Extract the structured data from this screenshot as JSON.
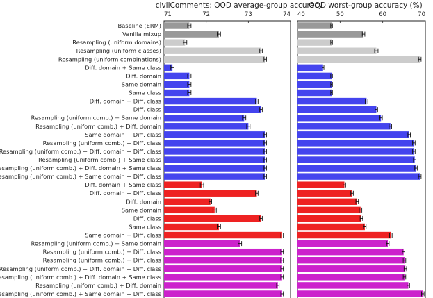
{
  "chart_data": {
    "type": "bar",
    "orientation": "horizontal",
    "categories": [
      "Baseline (ERM)",
      "Vanilla mixup",
      "Resampling (uniform domains)",
      "Resampling (uniform classes)",
      "Resampling (uniform combinations)",
      "Diff. domain + Same class",
      "Diff. domain",
      "Same domain",
      "Same class",
      "Diff. domain + Diff. class",
      "Diff. class",
      "Resampling (uniform comb.) + Same domain",
      "Resampling (uniform comb.) + Diff. domain",
      "Same domain + Diff. class",
      "Resampling (uniform comb.) + Diff. class",
      "Resampling (uniform comb.) + Diff. domain + Diff. class",
      "Resampling (uniform comb.) + Same class",
      "Resampling (uniform comb.) + Diff. domain + Same class",
      "Resampling (uniform comb.) + Same domain + Diff. class",
      "Diff. domain + Same class",
      "Diff. domain + Diff. class",
      "Diff. domain",
      "Same domain",
      "Diff. class",
      "Same class",
      "Same domain + Diff. class",
      "Resampling (uniform comb.) + Same domain",
      "Resampling (uniform comb.) + Diff. class",
      "Resampling (uniform comb.) + Diff. class",
      "Resampling (uniform comb.) + Diff. domain + Diff. class",
      "Resampling (uniform comb.) + Diff. domain + Same class",
      "Resampling (uniform comb.) + Diff. domain",
      "Resampling (uniform comb.) + Same domain + Diff. class"
    ],
    "groups": [
      "gray",
      "gray",
      "lightgray",
      "lightgray",
      "lightgray",
      "blue",
      "blue",
      "blue",
      "blue",
      "blue",
      "blue",
      "blue",
      "blue",
      "blue",
      "blue",
      "blue",
      "blue",
      "blue",
      "blue",
      "red",
      "red",
      "red",
      "red",
      "red",
      "red",
      "red",
      "magenta",
      "magenta",
      "magenta",
      "magenta",
      "magenta",
      "magenta",
      "magenta"
    ],
    "colors": {
      "gray": "#999999",
      "lightgray": "#cccccc",
      "blue": "#4444ee",
      "red": "#ee2222",
      "magenta": "#cc22cc"
    },
    "panels": [
      {
        "title": "civilComments: OOD average-group accuracy",
        "xlim": [
          71,
          74
        ],
        "xticks": [
          "71",
          "72",
          "73",
          "74"
        ],
        "values": [
          71.6,
          72.3,
          71.5,
          73.3,
          73.4,
          71.2,
          71.6,
          71.6,
          71.6,
          73.2,
          73.3,
          72.9,
          73.0,
          73.4,
          73.4,
          73.4,
          73.4,
          73.4,
          73.4,
          71.9,
          73.2,
          72.1,
          72.2,
          73.3,
          72.3,
          73.8,
          72.8,
          73.8,
          73.8,
          73.8,
          73.8,
          73.7,
          73.8
        ],
        "errors": [
          0.04,
          0.04,
          0.04,
          0.03,
          0.03,
          0.04,
          0.04,
          0.04,
          0.04,
          0.03,
          0.03,
          0.04,
          0.04,
          0.03,
          0.03,
          0.03,
          0.03,
          0.03,
          0.03,
          0.04,
          0.03,
          0.03,
          0.04,
          0.03,
          0.04,
          0.03,
          0.04,
          0.03,
          0.03,
          0.03,
          0.03,
          0.03,
          0.03
        ]
      },
      {
        "title": "OOD worst-group accuracy (%)",
        "xlim": [
          40,
          70
        ],
        "xticks": [
          "40",
          "50",
          "60",
          "70"
        ],
        "values": [
          48.0,
          55.5,
          48.0,
          58.5,
          68.7,
          46.0,
          48.0,
          48.0,
          48.0,
          56.2,
          58.5,
          59.6,
          61.8,
          66.2,
          67.3,
          67.3,
          67.5,
          67.8,
          68.7,
          51.0,
          52.8,
          54.0,
          54.8,
          55.0,
          55.8,
          61.9,
          61.2,
          64.9,
          65.1,
          65.3,
          65.1,
          66.0,
          69.4
        ],
        "errors": [
          0.2,
          0.3,
          0.2,
          0.4,
          0.3,
          0.2,
          0.2,
          0.2,
          0.2,
          0.3,
          0.3,
          0.3,
          0.3,
          0.3,
          0.3,
          0.3,
          0.3,
          0.3,
          0.3,
          0.3,
          0.3,
          0.3,
          0.3,
          0.3,
          0.3,
          0.3,
          0.3,
          0.3,
          0.3,
          0.3,
          0.3,
          0.3,
          0.3
        ]
      }
    ]
  }
}
